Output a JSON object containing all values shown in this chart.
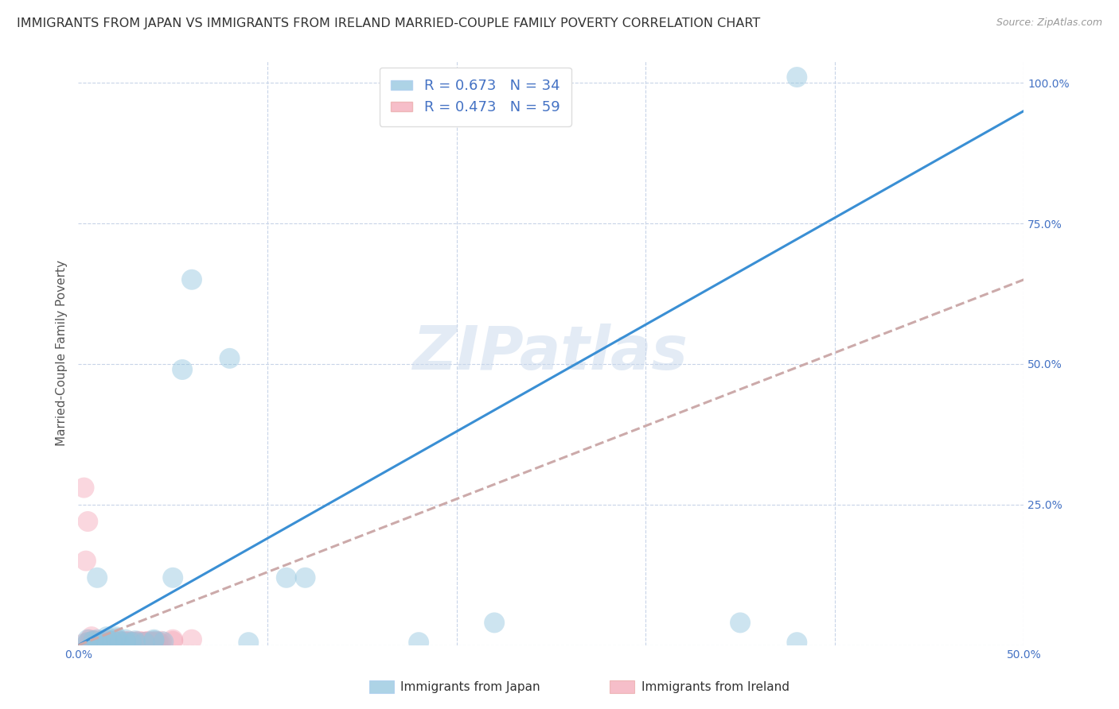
{
  "title": "IMMIGRANTS FROM JAPAN VS IMMIGRANTS FROM IRELAND MARRIED-COUPLE FAMILY POVERTY CORRELATION CHART",
  "source": "Source: ZipAtlas.com",
  "ylabel": "Married-Couple Family Poverty",
  "xlim": [
    0,
    0.5
  ],
  "ylim": [
    0,
    1.04
  ],
  "xticks": [
    0.0,
    0.1,
    0.2,
    0.3,
    0.4,
    0.5
  ],
  "yticks": [
    0.0,
    0.25,
    0.5,
    0.75,
    1.0
  ],
  "xtick_labels": [
    "0.0%",
    "",
    "",
    "",
    "",
    "50.0%"
  ],
  "ytick_labels": [
    "",
    "25.0%",
    "50.0%",
    "75.0%",
    "100.0%"
  ],
  "japan_color": "#92c5de",
  "ireland_color": "#f4a8b8",
  "japan_R": 0.673,
  "japan_N": 34,
  "ireland_R": 0.473,
  "ireland_N": 59,
  "japan_scatter_x": [
    0.005,
    0.008,
    0.01,
    0.012,
    0.015,
    0.018,
    0.02,
    0.022,
    0.025,
    0.028,
    0.03,
    0.035,
    0.04,
    0.045,
    0.05,
    0.055,
    0.06,
    0.08,
    0.09,
    0.11,
    0.12,
    0.18,
    0.22,
    0.35,
    0.38,
    0.005,
    0.01,
    0.015,
    0.02,
    0.025,
    0.03,
    0.04,
    0.01,
    0.38
  ],
  "japan_scatter_y": [
    0.005,
    0.008,
    0.01,
    0.005,
    0.015,
    0.008,
    0.012,
    0.006,
    0.01,
    0.005,
    0.008,
    0.005,
    0.008,
    0.006,
    0.12,
    0.49,
    0.65,
    0.51,
    0.005,
    0.12,
    0.12,
    0.005,
    0.04,
    0.04,
    1.01,
    0.01,
    0.005,
    0.01,
    0.015,
    0.005,
    0.005,
    0.01,
    0.12,
    0.005
  ],
  "ireland_scatter_x": [
    0.003,
    0.005,
    0.006,
    0.007,
    0.008,
    0.009,
    0.01,
    0.011,
    0.012,
    0.013,
    0.014,
    0.015,
    0.016,
    0.017,
    0.018,
    0.019,
    0.02,
    0.021,
    0.022,
    0.023,
    0.024,
    0.025,
    0.026,
    0.027,
    0.028,
    0.029,
    0.03,
    0.031,
    0.032,
    0.033,
    0.034,
    0.035,
    0.036,
    0.037,
    0.038,
    0.039,
    0.04,
    0.041,
    0.042,
    0.043,
    0.044,
    0.05,
    0.003,
    0.004,
    0.005,
    0.006,
    0.007,
    0.008,
    0.009,
    0.01,
    0.012,
    0.015,
    0.02,
    0.025,
    0.06,
    0.02,
    0.025,
    0.035,
    0.05
  ],
  "ireland_scatter_y": [
    0.003,
    0.005,
    0.004,
    0.006,
    0.005,
    0.007,
    0.006,
    0.008,
    0.005,
    0.006,
    0.007,
    0.005,
    0.008,
    0.006,
    0.005,
    0.007,
    0.006,
    0.008,
    0.005,
    0.006,
    0.007,
    0.005,
    0.006,
    0.007,
    0.005,
    0.006,
    0.005,
    0.006,
    0.007,
    0.005,
    0.006,
    0.005,
    0.006,
    0.007,
    0.005,
    0.006,
    0.005,
    0.007,
    0.006,
    0.005,
    0.007,
    0.01,
    0.28,
    0.15,
    0.22,
    0.01,
    0.015,
    0.008,
    0.007,
    0.006,
    0.005,
    0.007,
    0.005,
    0.006,
    0.01,
    0.006,
    0.005,
    0.005,
    0.007
  ],
  "japan_line_x": [
    0.0,
    0.5
  ],
  "japan_line_y": [
    0.0,
    0.95
  ],
  "ireland_line_x": [
    0.0,
    0.5
  ],
  "ireland_line_y": [
    0.0,
    0.65
  ],
  "watermark": "ZIPatlas",
  "background_color": "#ffffff",
  "grid_color": "#c8d4e8",
  "title_fontsize": 11.5,
  "axis_label_fontsize": 11,
  "tick_fontsize": 10,
  "legend_fontsize": 13,
  "scatter_size": 350,
  "scatter_alpha": 0.45,
  "line_width": 2.2,
  "japan_line_color": "#3a8fd4",
  "ireland_line_color": "#ccaaaa"
}
